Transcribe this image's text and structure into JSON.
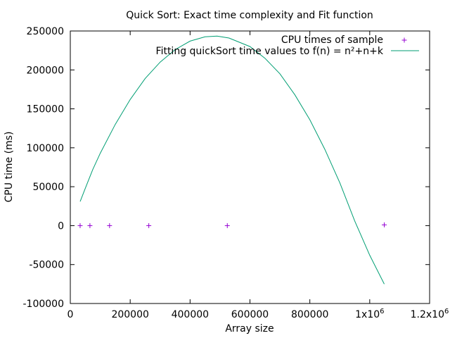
{
  "chart_data": {
    "type": "scatter",
    "title": "Quick Sort: Exact time complexity and Fit function",
    "xlabel": "Array size",
    "ylabel": "CPU time (ms)",
    "xlim": [
      0,
      1200000
    ],
    "ylim": [
      -100000,
      250000
    ],
    "grid": false,
    "legend_position": "top-right",
    "x_ticks": [
      {
        "value": 0,
        "label": "0"
      },
      {
        "value": 200000,
        "label": "200000"
      },
      {
        "value": 400000,
        "label": "400000"
      },
      {
        "value": 600000,
        "label": "600000"
      },
      {
        "value": 800000,
        "label": "800000"
      },
      {
        "value": 1000000,
        "label": "1x10"
      },
      {
        "value": 1200000,
        "label": "1.2x10"
      }
    ],
    "x_tick_superscript": "6",
    "y_ticks": [
      {
        "value": 250000,
        "label": "250000"
      },
      {
        "value": 200000,
        "label": "200000"
      },
      {
        "value": 150000,
        "label": "150000"
      },
      {
        "value": 100000,
        "label": "100000"
      },
      {
        "value": 50000,
        "label": "50000"
      },
      {
        "value": 0,
        "label": "0"
      },
      {
        "value": -50000,
        "label": "-50000"
      },
      {
        "value": -100000,
        "label": "-100000"
      }
    ],
    "series": [
      {
        "name": "CPU times of sample",
        "kind": "points",
        "marker": "plus",
        "color": "#9400d3",
        "points": [
          {
            "x": 32768,
            "y": 0
          },
          {
            "x": 65536,
            "y": 0
          },
          {
            "x": 131072,
            "y": 0
          },
          {
            "x": 262144,
            "y": 0
          },
          {
            "x": 524288,
            "y": 0
          },
          {
            "x": 1048576,
            "y": 1000
          }
        ]
      },
      {
        "name": "Fitting quickSort time values to f(n) = n²+n+k",
        "kind": "line",
        "color": "#009e73",
        "points": [
          {
            "x": 32768,
            "y": 31000
          },
          {
            "x": 50000,
            "y": 48000
          },
          {
            "x": 75000,
            "y": 72000
          },
          {
            "x": 100000,
            "y": 93000
          },
          {
            "x": 150000,
            "y": 130000
          },
          {
            "x": 200000,
            "y": 162000
          },
          {
            "x": 250000,
            "y": 189000
          },
          {
            "x": 300000,
            "y": 210000
          },
          {
            "x": 350000,
            "y": 226000
          },
          {
            "x": 400000,
            "y": 237000
          },
          {
            "x": 450000,
            "y": 242500
          },
          {
            "x": 490000,
            "y": 243500
          },
          {
            "x": 530000,
            "y": 241000
          },
          {
            "x": 600000,
            "y": 230000
          },
          {
            "x": 650000,
            "y": 215000
          },
          {
            "x": 700000,
            "y": 195000
          },
          {
            "x": 750000,
            "y": 168000
          },
          {
            "x": 800000,
            "y": 136000
          },
          {
            "x": 850000,
            "y": 98000
          },
          {
            "x": 900000,
            "y": 55000
          },
          {
            "x": 950000,
            "y": 6000
          },
          {
            "x": 1000000,
            "y": -38000
          },
          {
            "x": 1048576,
            "y": -75000
          }
        ]
      }
    ]
  }
}
